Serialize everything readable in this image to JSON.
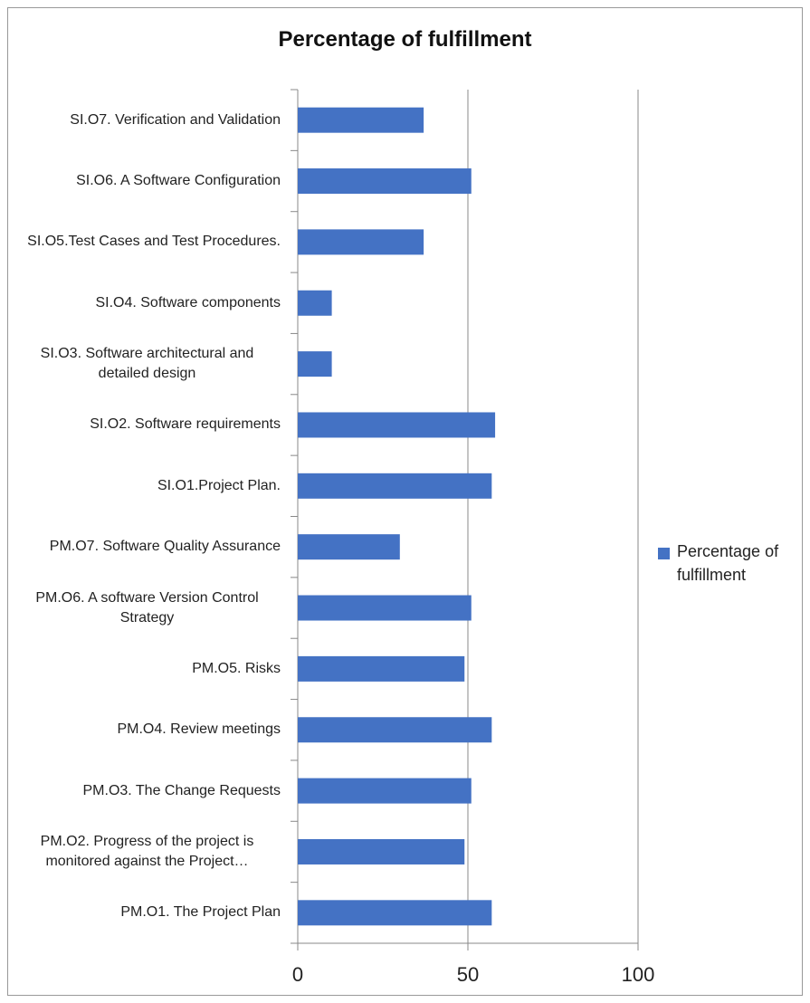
{
  "chart_data": {
    "type": "bar",
    "orientation": "horizontal",
    "title": "Percentage of fulfillment",
    "categories": [
      "SI.O7. Verification and Validation",
      "SI.O6. A Software Configuration",
      "SI.O5.Test Cases and Test Procedures.",
      "SI.O4. Software components",
      "SI.O3. Software architectural and detailed design",
      "SI.O2. Software requirements",
      "SI.O1.Project Plan.",
      "PM.O7. Software Quality Assurance",
      "PM.O6. A software Version Control Strategy",
      "PM.O5. Risks",
      "PM.O4. Review meetings",
      "PM.O3. The Change Requests",
      "PM.O2. Progress of the project is monitored against the Project…",
      "PM.O1. The Project Plan"
    ],
    "series": [
      {
        "name": "Percentage of fulfillment",
        "color": "#4472c4",
        "values": [
          37,
          51,
          37,
          10,
          10,
          58,
          57,
          30,
          51,
          49,
          57,
          51,
          49,
          57
        ]
      }
    ],
    "xlim": [
      0,
      100
    ],
    "xticks": [
      0,
      50,
      100
    ],
    "grid": true,
    "legend": "right"
  }
}
